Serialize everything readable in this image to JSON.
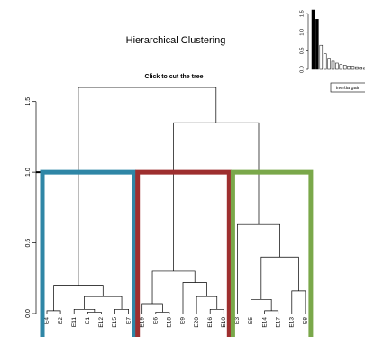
{
  "chart_data": [
    {
      "type": "dendrogram",
      "title": "Hierarchical Clustering",
      "subtitle": "Click to cut the tree",
      "ylim": [
        0,
        1.6
      ],
      "yticks": [
        {
          "value": 0,
          "label": "0.0"
        },
        {
          "value": 0.5,
          "label": "0.5"
        },
        {
          "value": 1,
          "label": "1.0"
        },
        {
          "value": 1.5,
          "label": "1.5"
        }
      ],
      "cut": 1.0,
      "cluster_colors": [
        "#2f86a6",
        "#9e2f2f",
        "#7aa84a"
      ],
      "tree": {
        "height": 1.6,
        "children": [
          {
            "height": 0.2,
            "children": [
              {
                "height": 0.02,
                "children": [
                  {
                    "label": "E4"
                  },
                  {
                    "label": "E2"
                  }
                ]
              },
              {
                "height": 0.12,
                "children": [
                  {
                    "height": 0.03,
                    "children": [
                      {
                        "label": "E11"
                      },
                      {
                        "height": 0.01,
                        "children": [
                          {
                            "label": "E1"
                          },
                          {
                            "label": "E12"
                          }
                        ]
                      }
                    ]
                  },
                  {
                    "height": 0.03,
                    "children": [
                      {
                        "label": "E15"
                      },
                      {
                        "label": "E7"
                      }
                    ]
                  }
                ]
              }
            ]
          },
          {
            "height": 1.35,
            "children": [
              {
                "height": 0.3,
                "children": [
                  {
                    "height": 0.07,
                    "children": [
                      {
                        "label": "E19"
                      },
                      {
                        "height": 0.01,
                        "children": [
                          {
                            "label": "E6"
                          },
                          {
                            "label": "E18"
                          }
                        ]
                      }
                    ]
                  },
                  {
                    "height": 0.22,
                    "children": [
                      {
                        "label": "E9"
                      },
                      {
                        "height": 0.12,
                        "children": [
                          {
                            "label": "E20"
                          },
                          {
                            "height": 0.03,
                            "children": [
                              {
                                "label": "E16"
                              },
                              {
                                "label": "E10"
                              }
                            ]
                          }
                        ]
                      }
                    ]
                  }
                ]
              },
              {
                "height": 0.63,
                "children": [
                  {
                    "label": "E3"
                  },
                  {
                    "height": 0.4,
                    "children": [
                      {
                        "height": 0.1,
                        "children": [
                          {
                            "label": "E5"
                          },
                          {
                            "height": 0.02,
                            "children": [
                              {
                                "label": "E14"
                              },
                              {
                                "label": "E17"
                              }
                            ]
                          }
                        ]
                      },
                      {
                        "height": 0.16,
                        "children": [
                          {
                            "label": "E13"
                          },
                          {
                            "label": "E8"
                          }
                        ]
                      }
                    ]
                  }
                ]
              }
            ]
          }
        ]
      }
    },
    {
      "type": "bar",
      "legend": "inertia gain",
      "values": [
        1.6,
        1.35,
        0.65,
        0.42,
        0.3,
        0.22,
        0.17,
        0.13,
        0.11,
        0.09,
        0.08,
        0.07,
        0.06,
        0.05
      ],
      "colors": [
        "#000000",
        "#000000",
        "#ffffff",
        "#ffffff",
        "#ffffff",
        "#ffffff",
        "#ffffff",
        "#ffffff",
        "#ffffff",
        "#ffffff",
        "#ffffff",
        "#ffffff",
        "#ffffff",
        "#ffffff"
      ],
      "ylim": [
        0,
        1.6
      ],
      "yticks": [
        {
          "value": 0,
          "label": "0.0"
        },
        {
          "value": 0.5,
          "label": "0.5"
        },
        {
          "value": 1,
          "label": "1.0"
        },
        {
          "value": 1.5,
          "label": "1.5"
        }
      ]
    }
  ]
}
